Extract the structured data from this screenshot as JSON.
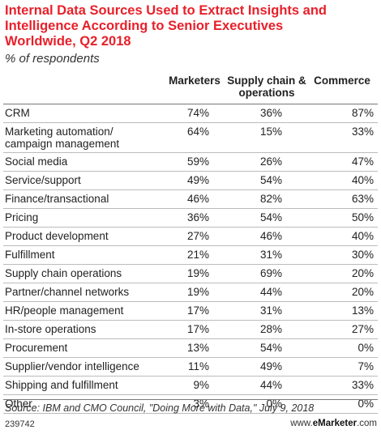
{
  "chart_data": {
    "type": "table",
    "title": "Internal Data Sources Used to Extract Insights and\nIntelligence According to Senior Executives\nWorldwide, Q2 2018",
    "subtitle": "% of respondents",
    "columns": [
      "Marketers",
      "Supply chain &\noperations",
      "Commerce"
    ],
    "rows": [
      {
        "label": "CRM",
        "values": [
          "74%",
          "36%",
          "87%"
        ]
      },
      {
        "label": "Marketing automation/\ncampaign management",
        "values": [
          "64%",
          "15%",
          "33%"
        ]
      },
      {
        "label": "Social media",
        "values": [
          "59%",
          "26%",
          "47%"
        ]
      },
      {
        "label": "Service/support",
        "values": [
          "49%",
          "54%",
          "40%"
        ]
      },
      {
        "label": "Finance/transactional",
        "values": [
          "46%",
          "82%",
          "63%"
        ]
      },
      {
        "label": "Pricing",
        "values": [
          "36%",
          "54%",
          "50%"
        ]
      },
      {
        "label": "Product development",
        "values": [
          "27%",
          "46%",
          "40%"
        ]
      },
      {
        "label": "Fulfillment",
        "values": [
          "21%",
          "31%",
          "30%"
        ]
      },
      {
        "label": "Supply chain operations",
        "values": [
          "19%",
          "69%",
          "20%"
        ]
      },
      {
        "label": "Partner/channel networks",
        "values": [
          "19%",
          "44%",
          "20%"
        ]
      },
      {
        "label": "HR/people management",
        "values": [
          "17%",
          "31%",
          "13%"
        ]
      },
      {
        "label": "In-store operations",
        "values": [
          "17%",
          "28%",
          "27%"
        ]
      },
      {
        "label": "Procurement",
        "values": [
          "13%",
          "54%",
          "0%"
        ]
      },
      {
        "label": "Supplier/vendor intelligence",
        "values": [
          "11%",
          "49%",
          "7%"
        ]
      },
      {
        "label": "Shipping and fulfillment",
        "values": [
          "9%",
          "44%",
          "33%"
        ]
      },
      {
        "label": "Other",
        "values": [
          "3%",
          "0%",
          "0%"
        ]
      }
    ],
    "source": "Source: IBM and CMO Council, \"Doing More with Data,\" July 9, 2018"
  },
  "footer": {
    "chart_id": "239742",
    "brand_prefix": "www.",
    "brand_name": "eMarketer",
    "brand_suffix": ".com"
  },
  "colors": {
    "title": "#e8202a"
  }
}
